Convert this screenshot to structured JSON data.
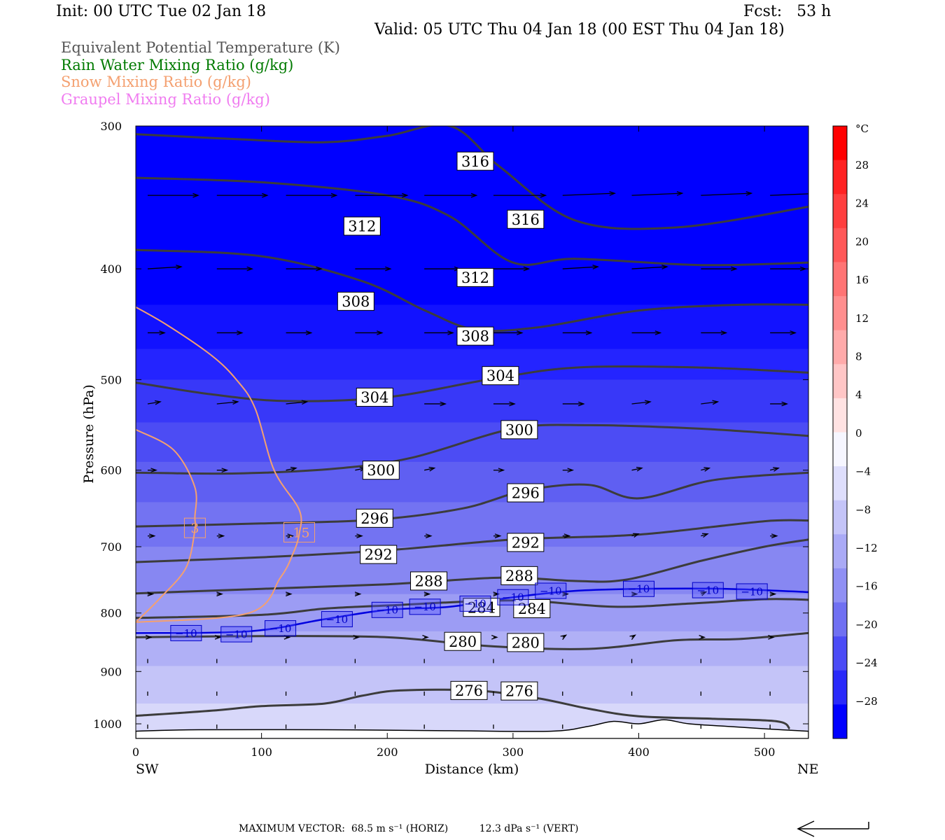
{
  "header": {
    "init": "Init: 00 UTC Tue 02 Jan 18",
    "fcst": "Fcst:   53 h",
    "valid": "Valid: 05 UTC Thu 04 Jan 18 (00 EST Thu 04 Jan 18)"
  },
  "legend": [
    {
      "label": "Equivalent Potential Temperature (K)",
      "color": "#555555"
    },
    {
      "label": "Rain Water Mixing Ratio (g/kg)",
      "color": "#007a00"
    },
    {
      "label": "Snow Mixing Ratio (g/kg)",
      "color": "#f4a070"
    },
    {
      "label": "Graupel Mixing Ratio (g/kg)",
      "color": "#f07cf0"
    }
  ],
  "footer": {
    "max_vector": "MAXIMUM VECTOR:  68.5 m s⁻¹ (HORIZ)          12.3 dPa s⁻¹ (VERT)"
  },
  "chart_data": {
    "type": "contour-cross-section",
    "xlabel": "Distance (km)",
    "ylabel": "Pressure (hPa)",
    "xlim": [
      0,
      535
    ],
    "ylim": [
      1030,
      300
    ],
    "yscale": "log",
    "x_ticks": [
      0,
      100,
      200,
      300,
      400,
      500
    ],
    "y_ticks": [
      300,
      400,
      500,
      600,
      700,
      800,
      900,
      1000
    ],
    "left_end_label": "SW",
    "right_end_label": "NE",
    "colorbar": {
      "unit": "°C",
      "labels": [
        28,
        24,
        20,
        16,
        12,
        8,
        4,
        0,
        -4,
        -8,
        -12,
        -16,
        -20,
        -24,
        -28
      ]
    },
    "theta_e_contours": [
      {
        "level": 316,
        "points": [
          [
            0,
            305
          ],
          [
            80,
            308
          ],
          [
            150,
            310
          ],
          [
            200,
            306
          ],
          [
            250,
            300
          ],
          [
            290,
            326
          ],
          [
            350,
            363
          ],
          [
            430,
            368
          ],
          [
            535,
            353
          ]
        ]
      },
      {
        "level": 312,
        "points": [
          [
            0,
            333
          ],
          [
            100,
            336
          ],
          [
            200,
            345
          ],
          [
            250,
            360
          ],
          [
            300,
            395
          ],
          [
            350,
            392
          ],
          [
            450,
            397
          ],
          [
            535,
            395
          ]
        ]
      },
      {
        "level": 308,
        "points": [
          [
            0,
            385
          ],
          [
            100,
            390
          ],
          [
            180,
            410
          ],
          [
            230,
            435
          ],
          [
            270,
            452
          ],
          [
            320,
            450
          ],
          [
            400,
            435
          ],
          [
            480,
            430
          ],
          [
            535,
            430
          ]
        ]
      },
      {
        "level": 304,
        "points": [
          [
            0,
            503
          ],
          [
            60,
            515
          ],
          [
            120,
            522
          ],
          [
            200,
            518
          ],
          [
            280,
            500
          ],
          [
            350,
            488
          ],
          [
            450,
            488
          ],
          [
            535,
            493
          ]
        ]
      },
      {
        "level": 300,
        "points": [
          [
            0,
            603
          ],
          [
            80,
            604
          ],
          [
            160,
            598
          ],
          [
            220,
            585
          ],
          [
            300,
            552
          ],
          [
            360,
            548
          ],
          [
            450,
            552
          ],
          [
            535,
            560
          ]
        ]
      },
      {
        "level": 296,
        "points": [
          [
            0,
            672
          ],
          [
            100,
            668
          ],
          [
            190,
            663
          ],
          [
            260,
            648
          ],
          [
            310,
            625
          ],
          [
            360,
            618
          ],
          [
            400,
            635
          ],
          [
            460,
            612
          ],
          [
            535,
            603
          ]
        ]
      },
      {
        "level": 292,
        "points": [
          [
            0,
            722
          ],
          [
            100,
            715
          ],
          [
            200,
            705
          ],
          [
            300,
            690
          ],
          [
            380,
            685
          ],
          [
            420,
            680
          ],
          [
            500,
            665
          ],
          [
            535,
            664
          ]
        ]
      },
      {
        "level": 288,
        "points": [
          [
            0,
            769
          ],
          [
            100,
            762
          ],
          [
            200,
            755
          ],
          [
            290,
            745
          ],
          [
            350,
            750
          ],
          [
            390,
            748
          ],
          [
            450,
            720
          ],
          [
            500,
            700
          ],
          [
            535,
            690
          ]
        ]
      },
      {
        "level": 284,
        "points": [
          [
            0,
            808
          ],
          [
            100,
            803
          ],
          [
            150,
            793
          ],
          [
            200,
            788
          ],
          [
            300,
            780
          ],
          [
            380,
            790
          ],
          [
            440,
            785
          ],
          [
            500,
            778
          ],
          [
            535,
            779
          ]
        ]
      },
      {
        "level": 280,
        "points": [
          [
            0,
            840
          ],
          [
            100,
            838
          ],
          [
            200,
            840
          ],
          [
            280,
            855
          ],
          [
            360,
            860
          ],
          [
            430,
            845
          ],
          [
            480,
            843
          ],
          [
            535,
            833
          ]
        ]
      },
      {
        "level": 276,
        "points": [
          [
            0,
            984
          ],
          [
            60,
            974
          ],
          [
            100,
            965
          ],
          [
            150,
            960
          ],
          [
            180,
            945
          ],
          [
            210,
            935
          ],
          [
            270,
            935
          ],
          [
            320,
            950
          ],
          [
            360,
            970
          ],
          [
            400,
            985
          ],
          [
            460,
            990
          ],
          [
            510,
            995
          ],
          [
            520,
            1010
          ]
        ]
      }
    ],
    "minus10_isotherm": [
      [
        0,
        833
      ],
      [
        90,
        830
      ],
      [
        150,
        810
      ],
      [
        200,
        795
      ],
      [
        250,
        790
      ],
      [
        300,
        775
      ],
      [
        350,
        765
      ],
      [
        400,
        762
      ],
      [
        470,
        762
      ],
      [
        535,
        767
      ]
    ],
    "minus10_labels": [
      [
        40,
        833
      ],
      [
        80,
        835
      ],
      [
        115,
        825
      ],
      [
        160,
        810
      ],
      [
        200,
        795
      ],
      [
        230,
        790
      ],
      [
        270,
        785
      ],
      [
        300,
        775
      ],
      [
        330,
        765
      ],
      [
        400,
        762
      ],
      [
        455,
        764
      ],
      [
        490,
        766
      ]
    ],
    "theta_e_label_positions": [
      {
        "level": 316,
        "pts": [
          [
            270,
            322
          ],
          [
            310,
            362
          ]
        ]
      },
      {
        "level": 312,
        "pts": [
          [
            180,
            367
          ],
          [
            270,
            407
          ]
        ]
      },
      {
        "level": 308,
        "pts": [
          [
            175,
            427
          ],
          [
            270,
            458
          ]
        ]
      },
      {
        "level": 304,
        "pts": [
          [
            190,
            518
          ],
          [
            290,
            496
          ]
        ]
      },
      {
        "level": 300,
        "pts": [
          [
            195,
            600
          ],
          [
            305,
            553
          ]
        ]
      },
      {
        "level": 296,
        "pts": [
          [
            190,
            661
          ],
          [
            310,
            628
          ]
        ]
      },
      {
        "level": 292,
        "pts": [
          [
            193,
            711
          ],
          [
            310,
            694
          ]
        ]
      },
      {
        "level": 288,
        "pts": [
          [
            233,
            750
          ],
          [
            305,
            742
          ]
        ]
      },
      {
        "level": 284,
        "pts": [
          [
            275,
            791
          ],
          [
            315,
            793
          ]
        ]
      },
      {
        "level": 280,
        "pts": [
          [
            260,
            847
          ],
          [
            310,
            849
          ]
        ]
      },
      {
        "level": 276,
        "pts": [
          [
            265,
            935
          ],
          [
            305,
            936
          ]
        ]
      }
    ],
    "snow_contours": [
      {
        "level": "3",
        "points": [
          [
            0,
            553
          ],
          [
            30,
            576
          ],
          [
            47,
            621
          ],
          [
            47,
            660
          ],
          [
            47,
            677
          ],
          [
            40,
            730
          ],
          [
            20,
            775
          ],
          [
            0,
            815
          ]
        ]
      },
      {
        "level": ".15",
        "points": [
          [
            0,
            432
          ],
          [
            25,
            448
          ],
          [
            60,
            476
          ],
          [
            80,
            500
          ],
          [
            95,
            530
          ],
          [
            110,
            600
          ],
          [
            130,
            650
          ],
          [
            130,
            682
          ],
          [
            125,
            710
          ],
          [
            115,
            745
          ],
          [
            90,
            800
          ],
          [
            0,
            815
          ]
        ]
      }
    ],
    "snow_label_positions": [
      {
        "level": "3",
        "pt": [
          47,
          674
        ]
      },
      {
        "level": ".15",
        "pt": [
          130,
          680
        ]
      }
    ],
    "vectors": {
      "x": [
        5,
        60,
        115,
        170,
        225,
        280,
        335,
        390,
        445,
        500
      ],
      "levels": [
        {
          "p": 345,
          "u": [
            60,
            60,
            60,
            62,
            62,
            62,
            62,
            60,
            60,
            60
          ],
          "v": [
            0,
            0,
            0,
            0,
            0,
            0,
            1,
            1,
            1,
            1
          ]
        },
        {
          "p": 400,
          "u": [
            40,
            42,
            42,
            42,
            42,
            42,
            42,
            42,
            42,
            42
          ],
          "v": [
            1,
            0,
            0,
            0,
            0,
            0,
            1,
            1,
            0,
            0
          ]
        },
        {
          "p": 455,
          "u": [
            20,
            30,
            30,
            32,
            34,
            34,
            34,
            34,
            30,
            30
          ],
          "v": [
            0,
            0,
            0,
            0,
            0,
            0,
            0,
            0,
            0,
            0
          ]
        },
        {
          "p": 525,
          "u": [
            15,
            25,
            25,
            25,
            25,
            25,
            25,
            22,
            20,
            20
          ],
          "v": [
            1,
            1,
            1,
            0,
            0,
            0,
            0,
            1,
            1,
            0
          ]
        },
        {
          "p": 600,
          "u": [
            10,
            12,
            12,
            12,
            12,
            12,
            12,
            12,
            10,
            10
          ],
          "v": [
            0,
            0,
            1,
            1,
            1,
            0,
            0,
            1,
            1,
            1
          ]
        },
        {
          "p": 685,
          "u": [
            8,
            8,
            8,
            8,
            8,
            8,
            8,
            8,
            8,
            8
          ],
          "v": [
            0,
            0,
            0,
            0,
            0,
            0,
            0,
            1,
            1,
            0
          ]
        },
        {
          "p": 770,
          "u": [
            6,
            6,
            6,
            6,
            6,
            6,
            6,
            6,
            6,
            6
          ],
          "v": [
            0,
            0,
            0,
            0,
            0,
            0,
            0,
            0,
            1,
            0
          ]
        },
        {
          "p": 840,
          "u": [
            4,
            4,
            4,
            4,
            4,
            4,
            4,
            4,
            4,
            4
          ],
          "v": [
            0,
            0,
            0,
            0,
            0,
            0,
            1,
            1,
            0,
            0
          ]
        },
        {
          "p": 885,
          "u": [
            0,
            0,
            0,
            0,
            0,
            0,
            0,
            0,
            0,
            0
          ],
          "v": [
            1,
            1,
            1,
            1,
            1,
            1,
            1,
            1,
            1,
            1
          ]
        },
        {
          "p": 945,
          "u": [
            0,
            0,
            0,
            0,
            0,
            0,
            0,
            0,
            0,
            0
          ],
          "v": [
            1,
            1,
            1,
            1,
            1,
            1,
            1,
            1,
            1,
            1
          ]
        },
        {
          "p": 1010,
          "u": [
            0,
            0,
            0,
            0,
            0,
            0,
            0,
            0,
            0,
            0
          ],
          "v": [
            1,
            1,
            1,
            1,
            1,
            1,
            1,
            1,
            1,
            1
          ]
        }
      ]
    },
    "fill_bands": [
      {
        "p": [
          300,
          430
        ],
        "color": "#0000ff"
      },
      {
        "p": [
          430,
          470
        ],
        "color": "#1212ff"
      },
      {
        "p": [
          470,
          500
        ],
        "color": "#2424ff"
      },
      {
        "p": [
          500,
          545
        ],
        "color": "#3838f8"
      },
      {
        "p": [
          545,
          590
        ],
        "color": "#4c4cf4"
      },
      {
        "p": [
          590,
          640
        ],
        "color": "#5f5ff2"
      },
      {
        "p": [
          640,
          700
        ],
        "color": "#7373f2"
      },
      {
        "p": [
          700,
          770
        ],
        "color": "#8787f2"
      },
      {
        "p": [
          770,
          830
        ],
        "color": "#9c9cf4"
      },
      {
        "p": [
          830,
          890
        ],
        "color": "#b0b0f6"
      },
      {
        "p": [
          890,
          960
        ],
        "color": "#c4c4f8"
      },
      {
        "p": [
          960,
          1030
        ],
        "color": "#d8d8fa"
      }
    ]
  }
}
